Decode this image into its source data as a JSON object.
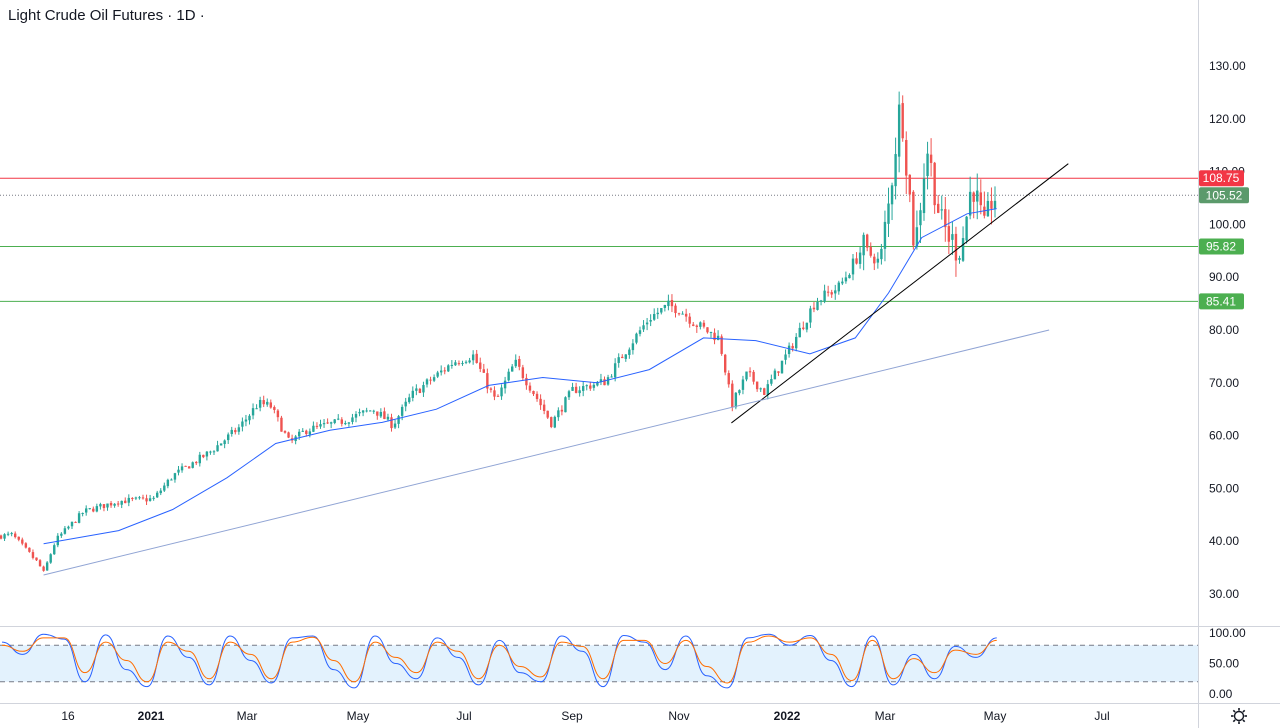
{
  "title": "Light Crude Oil Futures · 1D ·",
  "colors": {
    "up": "#26a69a",
    "down": "#ef5350",
    "ma": "#2962ff",
    "resistance": "#f23645",
    "support": "#4caf50",
    "trendline": "#000000",
    "long_trend": "#90a4d4",
    "stoch_k": "#2962ff",
    "stoch_d": "#ff6d00",
    "stoch_band": "#e3f2fd",
    "last_price": "#5b9a6b"
  },
  "chart_data": [
    {
      "type": "candlestick",
      "title": "Light Crude Oil Futures",
      "timeframe": "1D",
      "y_axis_ticks": [
        "130.00",
        "120.00",
        "110.00",
        "100.00",
        "90.00",
        "80.00",
        "70.00",
        "60.00",
        "50.00",
        "40.00",
        "30.00"
      ],
      "x_axis_ticks": [
        "16",
        "2021",
        "Mar",
        "May",
        "Jul",
        "Sep",
        "Nov",
        "2022",
        "Mar",
        "May",
        "Jul"
      ],
      "ylim": [
        25,
        135
      ],
      "x_range": [
        "2020-11-01",
        "2022-07-12"
      ],
      "horizontal_levels": [
        {
          "label": "108.75",
          "value": 108.75,
          "kind": "resistance"
        },
        {
          "label": "95.82",
          "value": 95.82,
          "kind": "support"
        },
        {
          "label": "85.41",
          "value": 85.41,
          "kind": "support"
        }
      ],
      "last_price": {
        "label": "105.52",
        "value": 105.52
      },
      "trendlines": [
        {
          "kind": "short",
          "from": [
            "2021-12-01",
            62.4
          ],
          "to": [
            "2022-06-12",
            111.5
          ]
        },
        {
          "kind": "long",
          "from": [
            "2020-11-02",
            33.6
          ],
          "to": [
            "2022-06-01",
            80.0
          ]
        }
      ],
      "price_path": [
        [
          "2020-10-01",
          40.8
        ],
        [
          "2020-10-15",
          41.2
        ],
        [
          "2020-10-30",
          35.8
        ],
        [
          "2020-11-02",
          34.0
        ],
        [
          "2020-11-09",
          40.2
        ],
        [
          "2020-11-25",
          45.6
        ],
        [
          "2020-12-15",
          47.6
        ],
        [
          "2021-01-04",
          48.0
        ],
        [
          "2021-01-15",
          52.4
        ],
        [
          "2021-02-05",
          56.8
        ],
        [
          "2021-02-22",
          61.5
        ],
        [
          "2021-03-05",
          66.1
        ],
        [
          "2021-03-12",
          65.6
        ],
        [
          "2021-03-23",
          58.5
        ],
        [
          "2021-04-01",
          61.0
        ],
        [
          "2021-04-20",
          62.5
        ],
        [
          "2021-05-10",
          65.0
        ],
        [
          "2021-05-21",
          62.0
        ],
        [
          "2021-06-01",
          67.7
        ],
        [
          "2021-06-25",
          74.0
        ],
        [
          "2021-07-06",
          75.2
        ],
        [
          "2021-07-19",
          66.4
        ],
        [
          "2021-07-30",
          73.9
        ],
        [
          "2021-08-10",
          68.0
        ],
        [
          "2021-08-20",
          62.3
        ],
        [
          "2021-09-01",
          68.6
        ],
        [
          "2021-09-20",
          70.3
        ],
        [
          "2021-10-01",
          75.9
        ],
        [
          "2021-10-15",
          82.3
        ],
        [
          "2021-10-26",
          84.6
        ],
        [
          "2021-11-01",
          84.0
        ],
        [
          "2021-11-10",
          81.3
        ],
        [
          "2021-11-24",
          78.4
        ],
        [
          "2021-11-29",
          69.9
        ],
        [
          "2021-12-01",
          65.6
        ],
        [
          "2021-12-10",
          71.7
        ],
        [
          "2021-12-20",
          68.2
        ],
        [
          "2022-01-03",
          76.1
        ],
        [
          "2022-01-18",
          85.4
        ],
        [
          "2022-02-01",
          88.2
        ],
        [
          "2022-02-14",
          95.5
        ],
        [
          "2022-02-24",
          92.8
        ],
        [
          "2022-03-01",
          103.4
        ],
        [
          "2022-03-08",
          123.7
        ],
        [
          "2022-03-16",
          95.0
        ],
        [
          "2022-03-23",
          114.9
        ],
        [
          "2022-03-31",
          100.3
        ],
        [
          "2022-04-11",
          94.3
        ],
        [
          "2022-04-18",
          108.2
        ],
        [
          "2022-04-25",
          98.5
        ],
        [
          "2022-04-29",
          104.7
        ],
        [
          "2022-05-02",
          105.52
        ]
      ],
      "moving_average_path": [
        [
          "2020-11-02",
          39.5
        ],
        [
          "2020-12-15",
          42.0
        ],
        [
          "2021-01-15",
          46.0
        ],
        [
          "2021-02-15",
          52.0
        ],
        [
          "2021-03-15",
          58.5
        ],
        [
          "2021-04-15",
          61.0
        ],
        [
          "2021-05-15",
          62.5
        ],
        [
          "2021-06-15",
          65.0
        ],
        [
          "2021-07-15",
          69.5
        ],
        [
          "2021-08-15",
          71.0
        ],
        [
          "2021-09-15",
          70.0
        ],
        [
          "2021-10-15",
          72.5
        ],
        [
          "2021-11-15",
          78.5
        ],
        [
          "2021-12-15",
          78.0
        ],
        [
          "2022-01-15",
          75.5
        ],
        [
          "2022-02-10",
          78.5
        ],
        [
          "2022-03-01",
          87.0
        ],
        [
          "2022-03-20",
          97.5
        ],
        [
          "2022-04-15",
          102.0
        ],
        [
          "2022-05-02",
          103.0
        ]
      ]
    },
    {
      "type": "line",
      "title": "Stochastic",
      "y_axis_ticks": [
        "100.00",
        "50.00",
        "0.00"
      ],
      "ylim": [
        0,
        100
      ],
      "band": [
        20,
        80
      ],
      "series": [
        {
          "key": "k",
          "values": [
            85,
            65,
            98,
            90,
            20,
            97,
            40,
            12,
            95,
            60,
            15,
            95,
            55,
            18,
            92,
            95,
            40,
            10,
            95,
            50,
            25,
            92,
            60,
            15,
            88,
            35,
            20,
            95,
            70,
            12,
            96,
            85,
            40,
            95,
            30,
            10,
            92,
            98,
            80,
            96,
            55,
            12,
            95,
            15,
            65,
            25,
            78,
            60,
            92
          ]
        },
        {
          "key": "d",
          "values": [
            80,
            70,
            92,
            92,
            35,
            85,
            55,
            20,
            85,
            70,
            25,
            85,
            65,
            25,
            85,
            93,
            55,
            20,
            85,
            60,
            35,
            85,
            70,
            25,
            80,
            45,
            28,
            85,
            78,
            25,
            88,
            88,
            50,
            88,
            45,
            18,
            85,
            95,
            85,
            92,
            65,
            22,
            88,
            25,
            58,
            35,
            72,
            65,
            88
          ]
        }
      ]
    }
  ]
}
